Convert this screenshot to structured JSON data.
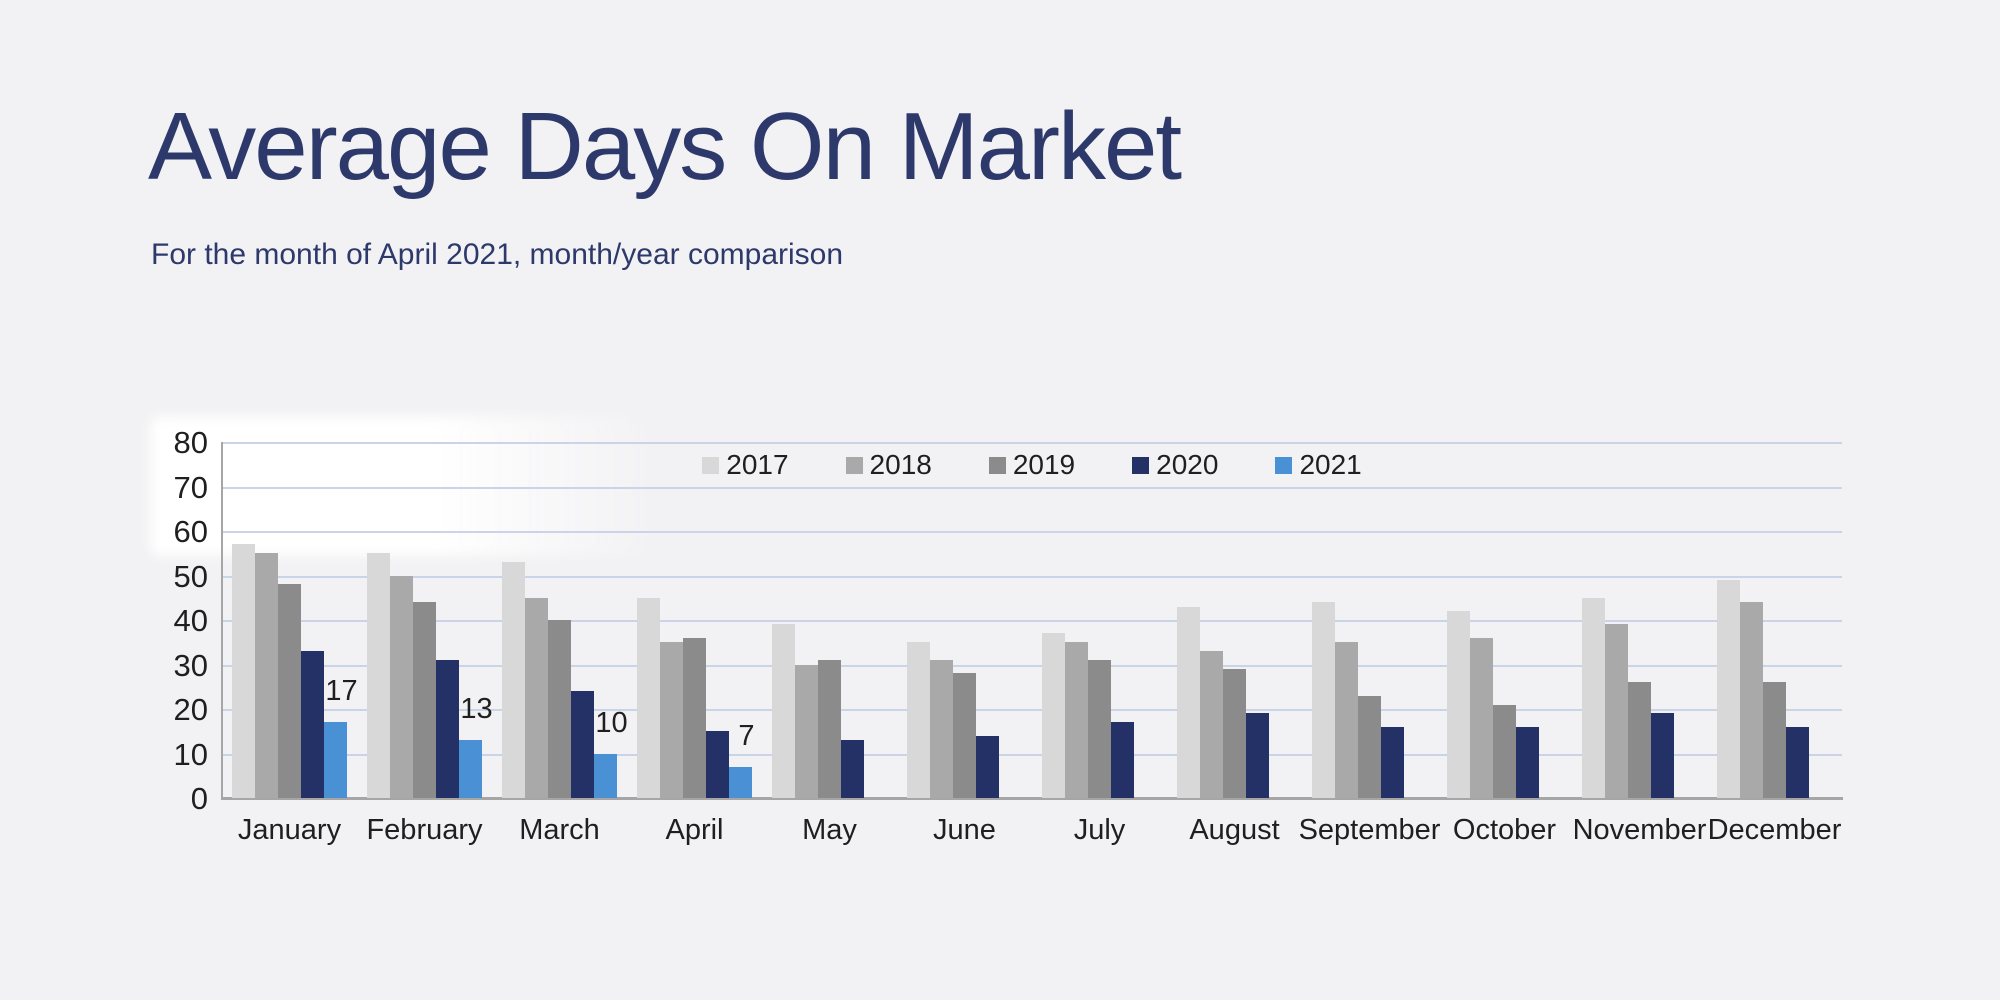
{
  "page": {
    "background": "#f2f2f4",
    "title_color": "#2d396b",
    "text_color": "#1f1f1f"
  },
  "header": {
    "title": "Average Days On Market",
    "subtitle": "For the month of April 2021, month/year comparison"
  },
  "chart_data": {
    "type": "bar",
    "title": "Average Days On Market",
    "subtitle": "For the month of April 2021, month/year comparison",
    "categories": [
      "January",
      "February",
      "March",
      "April",
      "May",
      "June",
      "July",
      "August",
      "September",
      "October",
      "November",
      "December"
    ],
    "series": [
      {
        "name": "2017",
        "color": "#d8d8d8",
        "values": [
          57,
          55,
          53,
          45,
          39,
          35,
          37,
          43,
          44,
          42,
          45,
          49
        ]
      },
      {
        "name": "2018",
        "color": "#a9a9a9",
        "values": [
          55,
          50,
          45,
          35,
          30,
          31,
          35,
          33,
          35,
          36,
          39,
          44
        ]
      },
      {
        "name": "2019",
        "color": "#8b8b8b",
        "values": [
          48,
          44,
          40,
          36,
          31,
          28,
          31,
          29,
          23,
          21,
          26,
          26
        ]
      },
      {
        "name": "2020",
        "color": "#233166",
        "values": [
          33,
          31,
          24,
          15,
          13,
          14,
          17,
          19,
          16,
          16,
          19,
          16
        ]
      },
      {
        "name": "2021",
        "color": "#4a90d5",
        "values": [
          17,
          13,
          10,
          7,
          null,
          null,
          null,
          null,
          null,
          null,
          null,
          null
        ],
        "data_labels": [
          17,
          13,
          10,
          7,
          null,
          null,
          null,
          null,
          null,
          null,
          null,
          null
        ]
      }
    ],
    "xlabel": "",
    "ylabel": "",
    "ylim": [
      0,
      80
    ],
    "ytick_step": 10,
    "yticks": [
      0,
      10,
      20,
      30,
      40,
      50,
      60,
      70,
      80
    ],
    "grid": true,
    "legend_position": "top-center",
    "gridline_color": "#c9d4e8",
    "axis_color": "#a6a6a6",
    "label_color": "#1f1f1f"
  }
}
